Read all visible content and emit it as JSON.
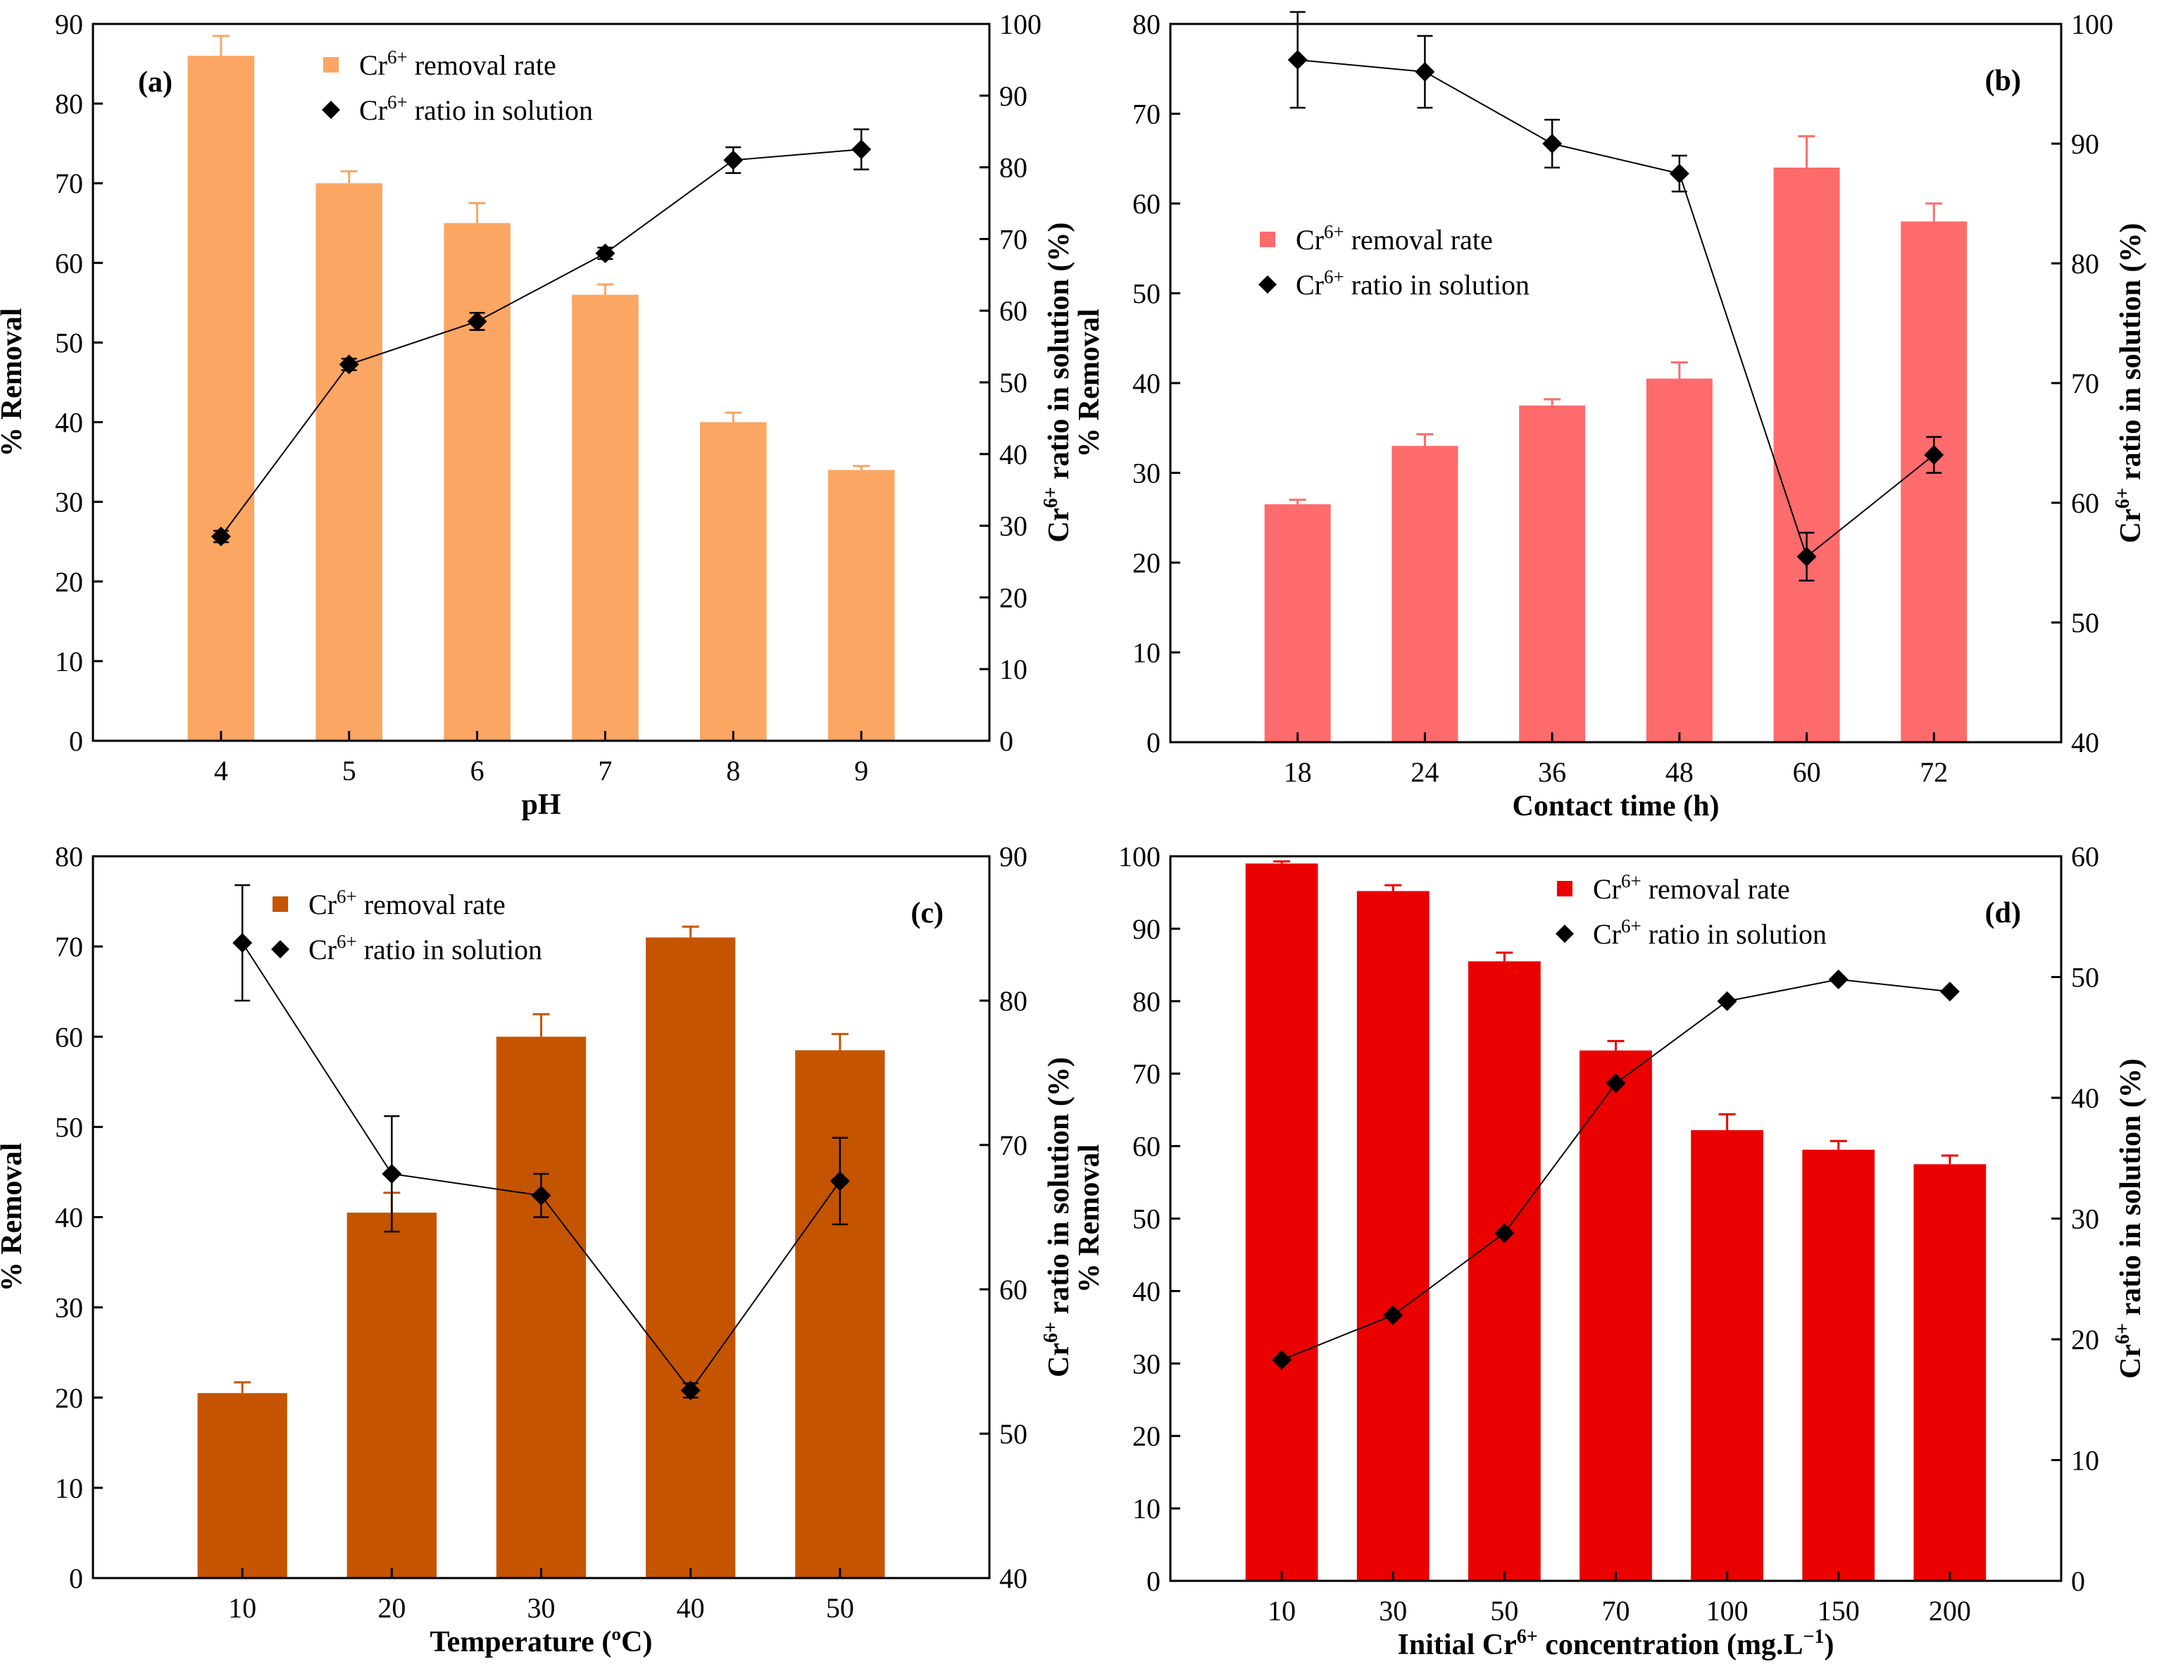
{
  "chart_data": [
    {
      "type": "bar",
      "panel": "(a)",
      "xlabel": "pH",
      "ylabel": "% Removal",
      "y2label_base": "Cr",
      "y2label_sup": "6+",
      "y2label_rest": " ratio in solution (%)",
      "categories": [
        "4",
        "5",
        "6",
        "7",
        "8",
        "9"
      ],
      "ylim": [
        0,
        90
      ],
      "yticks": [
        0,
        10,
        20,
        30,
        40,
        50,
        60,
        70,
        80,
        90
      ],
      "y2lim": [
        0,
        100
      ],
      "y2ticks": [
        0,
        10,
        20,
        30,
        40,
        50,
        60,
        70,
        80,
        90,
        100
      ],
      "bar_color": "#FBA663",
      "series": [
        {
          "name_base": "Cr",
          "name_sup": "6+",
          "name_rest": " removal rate",
          "kind": "bar",
          "axis": "left",
          "values": [
            86,
            70,
            65,
            56,
            40,
            34
          ],
          "errors": [
            2.5,
            1.5,
            2.5,
            1.3,
            1.2,
            0.5
          ]
        },
        {
          "name_base": "Cr",
          "name_sup": "6+",
          "name_rest": " ratio in solution",
          "kind": "line",
          "axis": "right",
          "values": [
            28.5,
            52.5,
            58.5,
            68,
            81,
            82.5
          ],
          "errors": [
            0.8,
            0.8,
            1.2,
            0.8,
            1.8,
            2.8
          ]
        }
      ],
      "legend_position": "top-center",
      "panel_tag_position": "top-left"
    },
    {
      "type": "bar",
      "panel": "(b)",
      "xlabel": "Contact time (h)",
      "ylabel": "% Removal",
      "y2label_base": "Cr",
      "y2label_sup": "6+",
      "y2label_rest": " ratio in solution (%)",
      "categories": [
        "18",
        "24",
        "36",
        "48",
        "60",
        "72"
      ],
      "ylim": [
        0,
        80
      ],
      "yticks": [
        0,
        10,
        20,
        30,
        40,
        50,
        60,
        70,
        80
      ],
      "y2lim": [
        40,
        100
      ],
      "y2ticks": [
        40,
        50,
        60,
        70,
        80,
        90,
        100
      ],
      "bar_color": "#FE6B6C",
      "series": [
        {
          "name_base": "Cr",
          "name_sup": "6+",
          "name_rest": " removal rate",
          "kind": "bar",
          "axis": "left",
          "values": [
            26.5,
            33,
            37.5,
            40.5,
            64,
            58
          ],
          "errors": [
            0.5,
            1.3,
            0.7,
            1.8,
            3.5,
            2
          ]
        },
        {
          "name_base": "Cr",
          "name_sup": "6+",
          "name_rest": " ratio in solution",
          "kind": "line",
          "axis": "right",
          "values": [
            97,
            96,
            90,
            87.5,
            55.5,
            64
          ],
          "errors": [
            4,
            3,
            2,
            1.5,
            2,
            1.5
          ]
        }
      ],
      "legend_position": "middle-left",
      "panel_tag_position": "top-right"
    },
    {
      "type": "bar",
      "panel": "(c)",
      "xlabel": "Temperature (ºC)",
      "ylabel": "% Removal",
      "y2label_base": "Cr",
      "y2label_sup": "6+",
      "y2label_rest": " ratio in solution (%)",
      "categories": [
        "10",
        "20",
        "30",
        "40",
        "50"
      ],
      "ylim": [
        0,
        80
      ],
      "yticks": [
        0,
        10,
        20,
        30,
        40,
        50,
        60,
        70,
        80
      ],
      "y2lim": [
        40,
        90
      ],
      "y2ticks": [
        40,
        50,
        60,
        70,
        80,
        90
      ],
      "bar_color": "#C55400",
      "series": [
        {
          "name_base": "Cr",
          "name_sup": "6+",
          "name_rest": " removal rate",
          "kind": "bar",
          "axis": "left",
          "values": [
            20.5,
            40.5,
            60,
            71,
            58.5
          ],
          "errors": [
            1.2,
            2.2,
            2.5,
            1.2,
            1.8
          ]
        },
        {
          "name_base": "Cr",
          "name_sup": "6+",
          "name_rest": " ratio in solution",
          "kind": "line",
          "axis": "right",
          "values": [
            84,
            68,
            66.5,
            53,
            67.5
          ],
          "errors": [
            4,
            4,
            1.5,
            0.5,
            3
          ]
        }
      ],
      "legend_position": "top-center",
      "panel_tag_position": "top-right"
    },
    {
      "type": "bar",
      "panel": "(d)",
      "xlabel_base": "Initial Cr",
      "xlabel_sup": "6+",
      "xlabel_mid": " concentration (mg.L",
      "xlabel_sup2": "−1",
      "xlabel_end": ")",
      "ylabel": "% Removal",
      "y2label_base": "Cr",
      "y2label_sup": "6+",
      "y2label_rest": " ratio in solution (%)",
      "categories": [
        "10",
        "30",
        "50",
        "70",
        "100",
        "150",
        "200"
      ],
      "ylim": [
        0,
        100
      ],
      "yticks": [
        0,
        10,
        20,
        30,
        40,
        50,
        60,
        70,
        80,
        90,
        100
      ],
      "y2lim": [
        0,
        60
      ],
      "y2ticks": [
        0,
        10,
        20,
        30,
        40,
        50,
        60
      ],
      "bar_color": "#EB0000",
      "series": [
        {
          "name_base": "Cr",
          "name_sup": "6+",
          "name_rest": " removal rate",
          "kind": "bar",
          "axis": "left",
          "values": [
            99,
            95.2,
            85.5,
            73.2,
            62.2,
            59.5,
            57.5
          ],
          "errors": [
            0.3,
            0.8,
            1.2,
            1.3,
            2.2,
            1.2,
            1.2
          ]
        },
        {
          "name_base": "Cr",
          "name_sup": "6+",
          "name_rest": " ratio in solution",
          "kind": "line",
          "axis": "right",
          "values": [
            18.3,
            22,
            28.8,
            41.2,
            48,
            49.8,
            48.8
          ],
          "errors": [
            0,
            0,
            0,
            0,
            0,
            0,
            0
          ]
        }
      ],
      "legend_position": "top-center",
      "panel_tag_position": "top-right"
    }
  ]
}
